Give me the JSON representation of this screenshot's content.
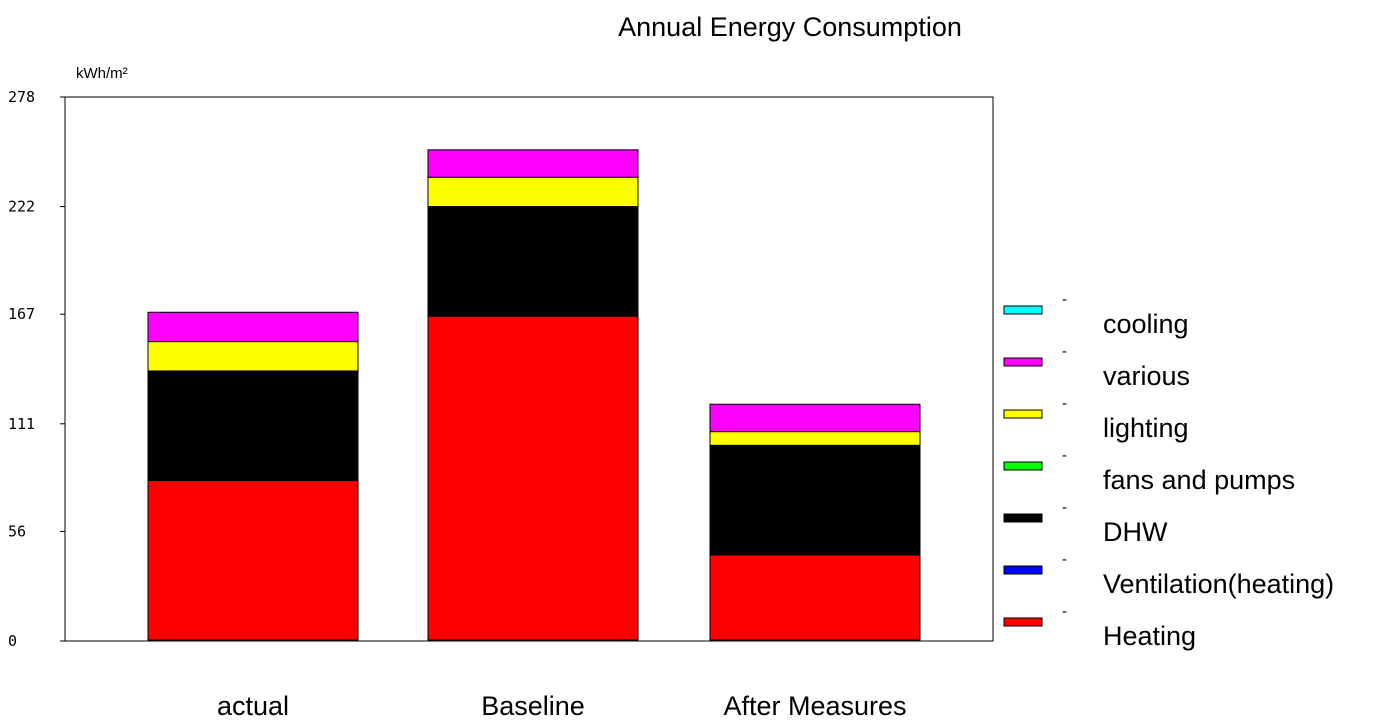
{
  "chart_data": {
    "type": "bar",
    "stacked": true,
    "title": "Annual Energy Consumption",
    "ylabel": "kWh/m²",
    "xlabel": "",
    "ylim": [
      0,
      278
    ],
    "yticks": [
      "0",
      "56",
      "111",
      "167",
      "222",
      "278"
    ],
    "categories": [
      "actual",
      "Baseline",
      "After Measures"
    ],
    "series": [
      {
        "name": "Heating",
        "color": "#ff0000",
        "values": [
          82,
          166,
          44
        ]
      },
      {
        "name": "Ventilation(heating)",
        "color": "#0000ff",
        "values": [
          0,
          0,
          0
        ]
      },
      {
        "name": "DHW",
        "color": "#000000",
        "values": [
          56,
          56,
          56
        ]
      },
      {
        "name": "fans and pumps",
        "color": "#00ff00",
        "values": [
          0,
          0,
          0
        ]
      },
      {
        "name": "lighting",
        "color": "#ffff00",
        "values": [
          15,
          15,
          7
        ]
      },
      {
        "name": "various",
        "color": "#ff00ff",
        "values": [
          15,
          14,
          14
        ]
      },
      {
        "name": "cooling",
        "color": "#00ffff",
        "values": [
          0,
          0,
          0
        ]
      }
    ],
    "legend_order": [
      "cooling",
      "various",
      "lighting",
      "fans and pumps",
      "DHW",
      "Ventilation(heating)",
      "Heating"
    ],
    "legend_marker": "-",
    "legend_position": "right",
    "grid": false
  }
}
